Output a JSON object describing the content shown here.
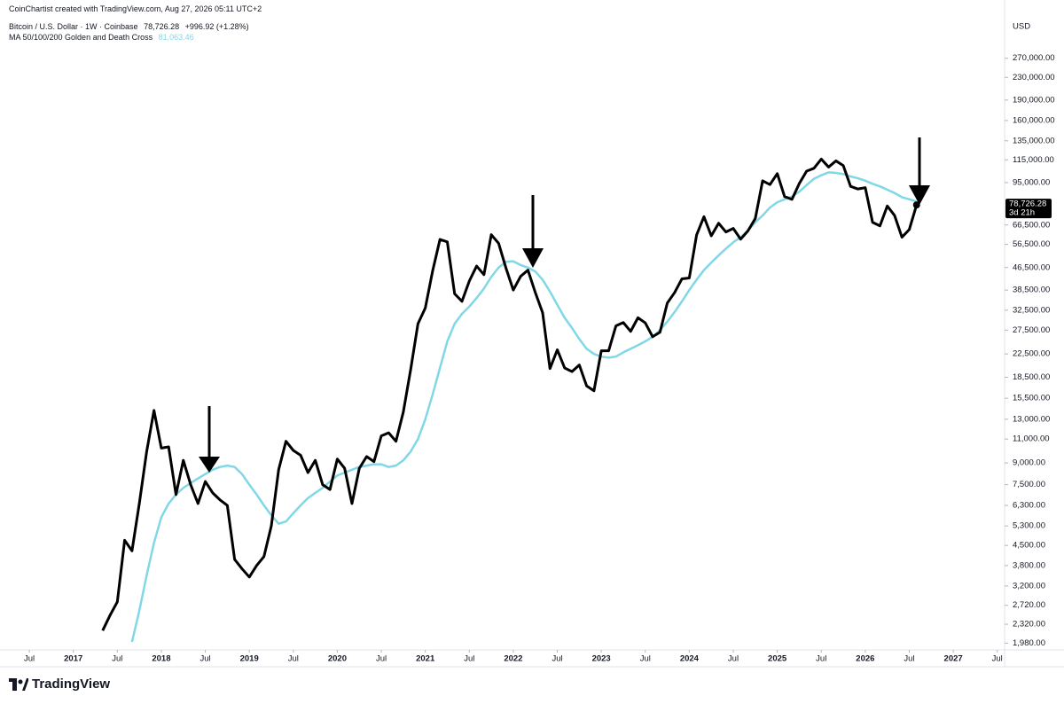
{
  "chart_data": {
    "type": "line",
    "credit": "CoinChartist created with TradingView.com, Aug 27, 2026 05:11 UTC+2",
    "last_price": "78,726.28",
    "change": "+996.92 (+1.28%)",
    "ma_value": "81,063.46",
    "countdown": "3d 21h",
    "currency": "USD",
    "watermark": "TradingView",
    "log_scale": true,
    "xlim": [
      "2016-03",
      "2027-08"
    ],
    "ylim": [
      1870,
      374000
    ],
    "x": [
      "2017-05",
      "2017-06",
      "2017-07",
      "2017-08",
      "2017-09",
      "2017-10",
      "2017-11",
      "2017-12",
      "2018-01",
      "2018-02",
      "2018-03",
      "2018-04",
      "2018-05",
      "2018-06",
      "2018-07",
      "2018-08",
      "2018-09",
      "2018-10",
      "2018-11",
      "2018-12",
      "2019-01",
      "2019-02",
      "2019-03",
      "2019-04",
      "2019-05",
      "2019-06",
      "2019-07",
      "2019-08",
      "2019-09",
      "2019-10",
      "2019-11",
      "2019-12",
      "2020-01",
      "2020-02",
      "2020-03",
      "2020-04",
      "2020-05",
      "2020-06",
      "2020-07",
      "2020-08",
      "2020-09",
      "2020-10",
      "2020-11",
      "2020-12",
      "2021-01",
      "2021-02",
      "2021-03",
      "2021-04",
      "2021-05",
      "2021-06",
      "2021-07",
      "2021-08",
      "2021-09",
      "2021-10",
      "2021-11",
      "2021-12",
      "2022-01",
      "2022-02",
      "2022-03",
      "2022-04",
      "2022-05",
      "2022-06",
      "2022-07",
      "2022-08",
      "2022-09",
      "2022-10",
      "2022-11",
      "2022-12",
      "2023-01",
      "2023-02",
      "2023-03",
      "2023-04",
      "2023-05",
      "2023-06",
      "2023-07",
      "2023-08",
      "2023-09",
      "2023-10",
      "2023-11",
      "2023-12",
      "2024-01",
      "2024-02",
      "2024-03",
      "2024-04",
      "2024-05",
      "2024-06",
      "2024-07",
      "2024-08",
      "2024-09",
      "2024-10",
      "2024-11",
      "2024-12",
      "2025-01",
      "2025-02",
      "2025-03",
      "2025-04",
      "2025-05",
      "2025-06",
      "2025-07",
      "2025-08",
      "2025-09",
      "2025-10",
      "2025-11",
      "2025-12",
      "2026-01",
      "2026-02",
      "2026-03",
      "2026-04",
      "2026-05",
      "2026-06",
      "2026-07",
      "2026-08"
    ],
    "series": [
      {
        "name": "Bitcoin / U.S. Dollar · 1W · Coinbase",
        "color": "#000000",
        "values": [
          2200,
          2500,
          2800,
          4700,
          4300,
          6400,
          9900,
          14000,
          10200,
          10300,
          6900,
          9200,
          7500,
          6400,
          7700,
          7000,
          6600,
          6300,
          4000,
          3700,
          3450,
          3800,
          4100,
          5300,
          8500,
          10800,
          10000,
          9600,
          8300,
          9200,
          7500,
          7200,
          9300,
          8600,
          6400,
          8600,
          9500,
          9100,
          11300,
          11600,
          10800,
          13800,
          19700,
          29000,
          33100,
          45200,
          58900,
          57700,
          37300,
          35000,
          41500,
          47100,
          43800,
          61300,
          57000,
          46300,
          38500,
          43200,
          45500,
          37700,
          31800,
          19900,
          23300,
          20000,
          19400,
          20500,
          17200,
          16500,
          23100,
          23100,
          28500,
          29300,
          27200,
          30500,
          29200,
          26000,
          27000,
          34500,
          37700,
          42300,
          42600,
          61200,
          71300,
          60700,
          67500,
          62700,
          64600,
          59000,
          63300,
          70200,
          96400,
          93400,
          102400,
          84400,
          82500,
          94200,
          104600,
          107100,
          115700,
          108200,
          114000,
          109600,
          92000,
          90000,
          91000,
          68000,
          66000,
          78000,
          72000,
          60000,
          64000,
          78726.28
        ]
      },
      {
        "name": "MA 50/100/200 Golden and Death Cross",
        "color": "#80d8e6",
        "values": [
          null,
          null,
          null,
          null,
          2000,
          2600,
          3500,
          4600,
          5700,
          6400,
          6900,
          7300,
          7600,
          7900,
          8200,
          8500,
          8700,
          8800,
          8700,
          8200,
          7500,
          6900,
          6300,
          5800,
          5400,
          5500,
          5900,
          6300,
          6700,
          7000,
          7300,
          7700,
          8100,
          8300,
          8500,
          8700,
          8800,
          8900,
          8900,
          8700,
          8800,
          9200,
          9900,
          11000,
          13000,
          16000,
          20000,
          25000,
          29000,
          31500,
          33500,
          36000,
          39000,
          43000,
          46500,
          48800,
          49000,
          47500,
          46500,
          45000,
          42000,
          38000,
          34000,
          30500,
          28000,
          25500,
          23500,
          22500,
          22000,
          21800,
          22000,
          22800,
          23500,
          24200,
          25000,
          26000,
          27500,
          29500,
          32000,
          35000,
          38500,
          42000,
          45500,
          48500,
          51500,
          54500,
          57500,
          60000,
          63500,
          68000,
          72000,
          77000,
          80500,
          82500,
          84500,
          88000,
          93000,
          98000,
          101000,
          103500,
          103000,
          102000,
          100000,
          98500,
          96500,
          94000,
          92000,
          89500,
          87000,
          84000,
          82500,
          81063.46
        ]
      }
    ],
    "xticks": [
      {
        "value": "2016-07",
        "label": "Jul"
      },
      {
        "value": "2017-01",
        "label": "2017"
      },
      {
        "value": "2017-07",
        "label": "Jul"
      },
      {
        "value": "2018-01",
        "label": "2018"
      },
      {
        "value": "2018-07",
        "label": "Jul"
      },
      {
        "value": "2019-01",
        "label": "2019"
      },
      {
        "value": "2019-07",
        "label": "Jul"
      },
      {
        "value": "2020-01",
        "label": "2020"
      },
      {
        "value": "2020-07",
        "label": "Jul"
      },
      {
        "value": "2021-01",
        "label": "2021"
      },
      {
        "value": "2021-07",
        "label": "Jul"
      },
      {
        "value": "2022-01",
        "label": "2022"
      },
      {
        "value": "2022-07",
        "label": "Jul"
      },
      {
        "value": "2023-01",
        "label": "2023"
      },
      {
        "value": "2023-07",
        "label": "Jul"
      },
      {
        "value": "2024-01",
        "label": "2024"
      },
      {
        "value": "2024-07",
        "label": "Jul"
      },
      {
        "value": "2025-01",
        "label": "2025"
      },
      {
        "value": "2025-07",
        "label": "Jul"
      },
      {
        "value": "2026-01",
        "label": "2026"
      },
      {
        "value": "2026-07",
        "label": "Jul"
      },
      {
        "value": "2027-01",
        "label": "2027"
      },
      {
        "value": "2027-07",
        "label": "Jul"
      }
    ],
    "yticks": [
      {
        "value": 270000,
        "label": "270,000.00"
      },
      {
        "value": 230000,
        "label": "230,000.00"
      },
      {
        "value": 190000,
        "label": "190,000.00"
      },
      {
        "value": 160000,
        "label": "160,000.00"
      },
      {
        "value": 135000,
        "label": "135,000.00"
      },
      {
        "value": 115000,
        "label": "115,000.00"
      },
      {
        "value": 95000,
        "label": "95,000.00"
      },
      {
        "value": 66500,
        "label": "66,500.00"
      },
      {
        "value": 56500,
        "label": "56,500.00"
      },
      {
        "value": 46500,
        "label": "46,500.00"
      },
      {
        "value": 38500,
        "label": "38,500.00"
      },
      {
        "value": 32500,
        "label": "32,500.00"
      },
      {
        "value": 27500,
        "label": "27,500.00"
      },
      {
        "value": 22500,
        "label": "22,500.00"
      },
      {
        "value": 18500,
        "label": "18,500.00"
      },
      {
        "value": 15500,
        "label": "15,500.00"
      },
      {
        "value": 13000,
        "label": "13,000.00"
      },
      {
        "value": 11000,
        "label": "11,000.00"
      },
      {
        "value": 9000,
        "label": "9,000.00"
      },
      {
        "value": 7500,
        "label": "7,500.00"
      },
      {
        "value": 6300,
        "label": "6,300.00"
      },
      {
        "value": 5300,
        "label": "5,300.00"
      },
      {
        "value": 4500,
        "label": "4,500.00"
      },
      {
        "value": 3800,
        "label": "3,800.00"
      },
      {
        "value": 3200,
        "label": "3,200.00"
      },
      {
        "value": 2720,
        "label": "2,720.00"
      },
      {
        "value": 2320,
        "label": "2,320.00"
      },
      {
        "value": 1980,
        "label": "1,980.00"
      }
    ]
  }
}
